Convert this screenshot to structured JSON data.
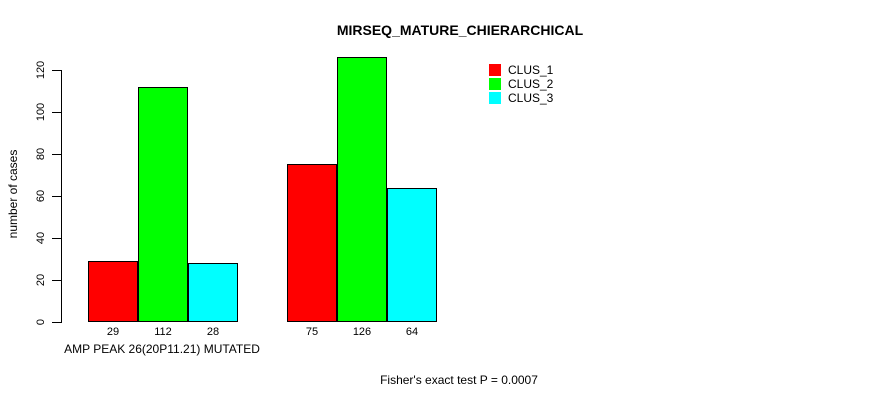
{
  "chart_data": {
    "type": "bar",
    "title": "MIRSEQ_MATURE_CHIERARCHICAL",
    "ylabel": "number of cases",
    "xlabel": "",
    "ylim": [
      0,
      120
    ],
    "yticks": [
      0,
      20,
      40,
      60,
      80,
      100,
      120
    ],
    "categories": [
      "AMP PEAK 26(20P11.21) MUTATED",
      ""
    ],
    "series": [
      {
        "name": "CLUS_1",
        "color": "#ff0000",
        "values": [
          29,
          75
        ]
      },
      {
        "name": "CLUS_2",
        "color": "#00ff00",
        "values": [
          112,
          126
        ]
      },
      {
        "name": "CLUS_3",
        "color": "#00ffff",
        "values": [
          28,
          64
        ]
      }
    ],
    "bar_value_labels_shown": true,
    "legend_position": "top-right",
    "grid": false,
    "annotation": "Fisher's exact test P = 0.0007"
  }
}
